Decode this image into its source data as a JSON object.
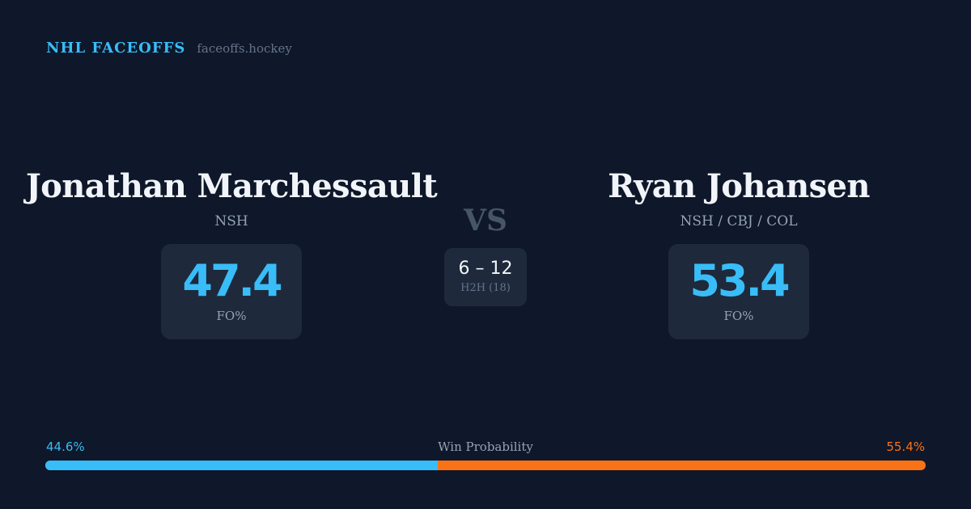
{
  "brand": {
    "name": "NHL FACEOFFS",
    "site": "faceoffs.hockey"
  },
  "player_left": {
    "name": "Jonathan Marchessault",
    "team": "NSH",
    "stat_value": "47.4",
    "stat_label": "FO%"
  },
  "player_right": {
    "name": "Ryan Johansen",
    "team": "NSH / CBJ / COL",
    "stat_value": "53.4",
    "stat_label": "FO%"
  },
  "versus": {
    "label": "VS",
    "record": "6 – 12",
    "record_label": "H2H (18)"
  },
  "win_probability": {
    "title": "Win Probability",
    "left_label": "44.6%",
    "right_label": "55.4%",
    "left_fraction": 0.446,
    "left_color": "#38bdf8",
    "right_color": "#f97316"
  },
  "colors": {
    "background": "#0f172a",
    "card": "#1e293b",
    "accent": "#38bdf8",
    "opponent": "#f97316"
  }
}
